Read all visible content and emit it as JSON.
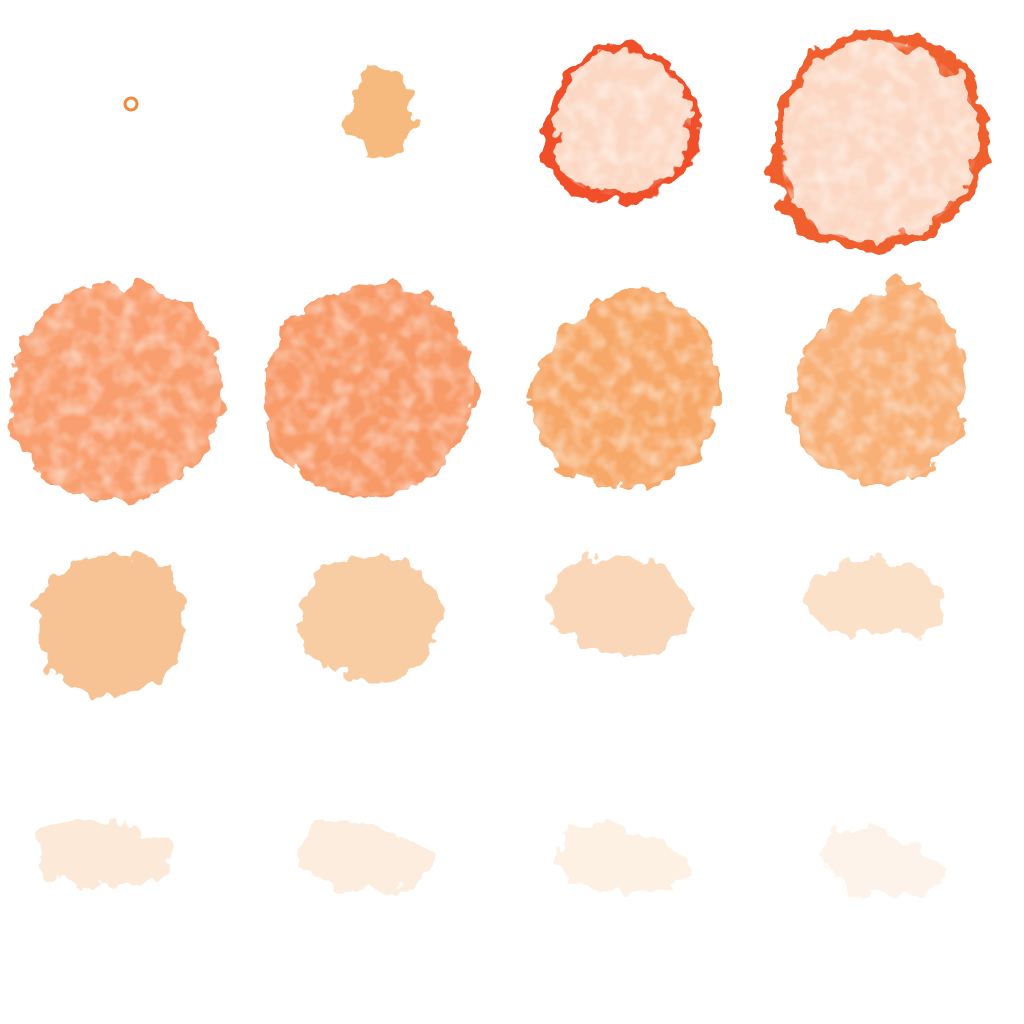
{
  "sequence": {
    "rows": 4,
    "columns": 4,
    "frames": [
      {
        "stage": "seed",
        "core_color": "#f4a460",
        "edge_color": "#ef8a3c",
        "opacity": 1.0,
        "rim": false
      },
      {
        "stage": "bud",
        "core_color": "#f6b97e",
        "edge_color": "#f19a4c",
        "opacity": 1.0,
        "rim": false
      },
      {
        "stage": "bloom",
        "core_color": "#fcd8c4",
        "edge_color": "#f0502a",
        "opacity": 1.0,
        "rim": true
      },
      {
        "stage": "peak",
        "core_color": "#fcd8c4",
        "edge_color": "#f0602e",
        "opacity": 1.0,
        "rim": true
      },
      {
        "stage": "full",
        "core_color": "#f99a68",
        "edge_color": "#f47a45",
        "opacity": 0.95,
        "rim": false
      },
      {
        "stage": "full",
        "core_color": "#f89560",
        "edge_color": "#f3733d",
        "opacity": 0.95,
        "rim": false
      },
      {
        "stage": "diffuse",
        "core_color": "#f79f58",
        "edge_color": "#f59248",
        "opacity": 0.9,
        "rim": false
      },
      {
        "stage": "diffuse",
        "core_color": "#f8a360",
        "edge_color": "#f59450",
        "opacity": 0.85,
        "rim": false
      },
      {
        "stage": "fade",
        "core_color": "#f6a862",
        "edge_color": "#f59a4e",
        "opacity": 0.75,
        "rim": false
      },
      {
        "stage": "fade",
        "core_color": "#f6aa64",
        "edge_color": "#f59a4e",
        "opacity": 0.65,
        "rim": false
      },
      {
        "stage": "fade",
        "core_color": "#f7b070",
        "edge_color": "#f59e55",
        "opacity": 0.55,
        "rim": false
      },
      {
        "stage": "fade",
        "core_color": "#f8b67a",
        "edge_color": "#f6a35c",
        "opacity": 0.45,
        "rim": false
      },
      {
        "stage": "wisp",
        "core_color": "#f8bc84",
        "edge_color": "#f6a866",
        "opacity": 0.35,
        "rim": false
      },
      {
        "stage": "wisp",
        "core_color": "#f9c08a",
        "edge_color": "#f6aa6a",
        "opacity": 0.3,
        "rim": false
      },
      {
        "stage": "wisp",
        "core_color": "#f9c290",
        "edge_color": "#f7ad70",
        "opacity": 0.26,
        "rim": false
      },
      {
        "stage": "wisp",
        "core_color": "#fac595",
        "edge_color": "#f7b076",
        "opacity": 0.22,
        "rim": false
      }
    ]
  },
  "colors": {
    "background": "#ffffff"
  }
}
